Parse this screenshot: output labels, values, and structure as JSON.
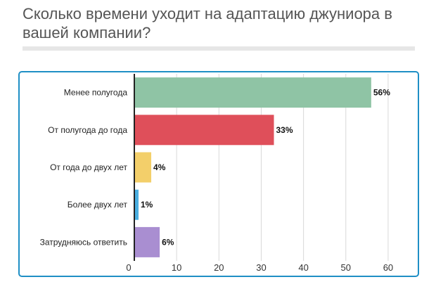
{
  "question": {
    "title": "Сколько времени уходит на адаптацию джуниора в вашей компании?"
  },
  "colors": {
    "card_border": "#1f8fc5",
    "divider": "#e6e6e6",
    "gridline": "#d9d9d9",
    "axis": "#222222"
  },
  "chart_data": {
    "type": "bar",
    "orientation": "horizontal",
    "categories": [
      "Менее полугода",
      "От полугода до года",
      "От года до двух лет",
      "Более двух лет",
      "Затрудняюсь ответить"
    ],
    "values": [
      56,
      33,
      4,
      1,
      6
    ],
    "value_labels": [
      "56%",
      "33%",
      "4%",
      "1%",
      "6%"
    ],
    "bar_colors": [
      "#8fc4a5",
      "#df4f5a",
      "#f3cf6a",
      "#4aaee0",
      "#a98ed1"
    ],
    "xlim": [
      0,
      65
    ],
    "xticks": [
      0,
      10,
      20,
      30,
      40,
      50,
      60
    ],
    "grid": true,
    "legend": "none",
    "title": "",
    "xlabel": "",
    "ylabel": ""
  }
}
